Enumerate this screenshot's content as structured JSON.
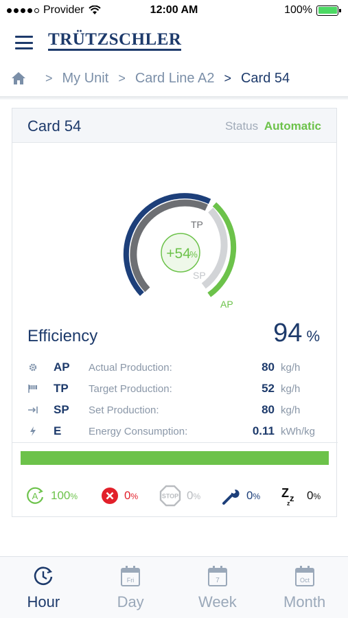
{
  "status_bar": {
    "carrier": "Provider",
    "time": "12:00 AM",
    "battery_pct": "100%"
  },
  "header": {
    "logo_text": "TRÜTZSCHLER"
  },
  "breadcrumb": {
    "items": [
      "My Unit",
      "Card Line A2",
      "Card 54"
    ]
  },
  "card": {
    "title": "Card 54",
    "status_label": "Status",
    "status_value": "Automatic"
  },
  "gauge": {
    "center_text": "+54",
    "center_unit": "%",
    "tp_label": "TP",
    "sp_label": "SP",
    "ap_label": "AP",
    "colors": {
      "tp": "#1d3f7a",
      "ap": "#6cc24a",
      "base": "#6d6f73",
      "sp": "#d2d4d7"
    }
  },
  "efficiency": {
    "label": "Efficiency",
    "value": "94",
    "unit": "%"
  },
  "metrics": [
    {
      "icon": "gear-icon",
      "code": "AP",
      "name": "Actual Production:",
      "value": "80",
      "unit": "kg/h"
    },
    {
      "icon": "flag-icon",
      "code": "TP",
      "name": "Target Production:",
      "value": "52",
      "unit": "kg/h"
    },
    {
      "icon": "set-arrow-icon",
      "code": "SP",
      "name": "Set Production:",
      "value": "80",
      "unit": "kg/h"
    },
    {
      "icon": "bolt-icon",
      "code": "E",
      "name": "Energy Consumption:",
      "value": "0.11",
      "unit": "kWh/kg"
    }
  ],
  "progress": {
    "fraction": 1.0
  },
  "states": [
    {
      "icon": "automatic-icon",
      "value": "100",
      "unit": "%",
      "color": "#6cc24a"
    },
    {
      "icon": "error-icon",
      "value": "0",
      "unit": "%",
      "color": "#e2202a"
    },
    {
      "icon": "stop-icon",
      "value": "0",
      "unit": "%",
      "color": "#b9bcc0",
      "icon_text": "STOP"
    },
    {
      "icon": "wrench-icon",
      "value": "0",
      "unit": "%",
      "color": "#1d3f7a"
    },
    {
      "icon": "sleep-icon",
      "value": "0",
      "unit": "%",
      "color": "#111111"
    }
  ],
  "tabs": [
    {
      "label": "Hour",
      "icon": "clock-icon",
      "active": true
    },
    {
      "label": "Day",
      "icon": "calendar-day-icon",
      "icon_text": "Fri",
      "active": false
    },
    {
      "label": "Week",
      "icon": "calendar-week-icon",
      "icon_text": "7",
      "active": false
    },
    {
      "label": "Month",
      "icon": "calendar-month-icon",
      "icon_text": "Oct",
      "active": false
    }
  ]
}
